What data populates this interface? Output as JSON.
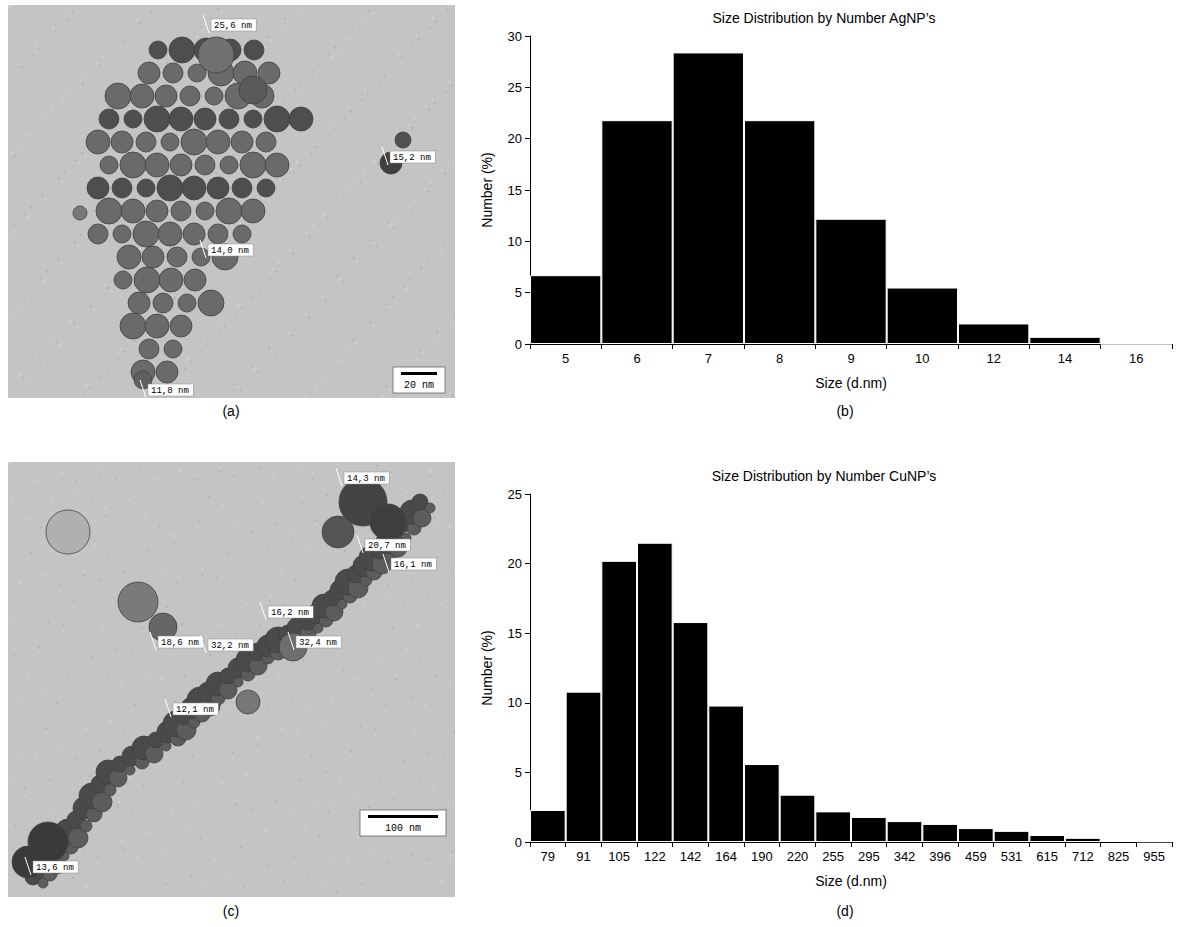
{
  "chart_data": [
    {
      "type": "bar",
      "title": "Size Distribution by Number AgNP’s",
      "x_label": "Size (d.nm)",
      "y_label": "Number (%)",
      "categories": [
        "5",
        "6",
        "7",
        "8",
        "9",
        "10",
        "12",
        "14",
        "16"
      ],
      "values": [
        6.7,
        21.8,
        28.4,
        21.8,
        12.2,
        5.5,
        2.0,
        0.7,
        0
      ],
      "color": "#000000",
      "ylim": [
        0,
        30
      ],
      "yticks": [
        0,
        5,
        10,
        15,
        20,
        25,
        30
      ],
      "grid": false
    },
    {
      "type": "bar",
      "title": "Size Distribution by Number CuNP’s",
      "x_label": "Size (d.nm)",
      "y_label": "Number (%)",
      "categories": [
        "79",
        "91",
        "105",
        "122",
        "142",
        "164",
        "190",
        "220",
        "255",
        "295",
        "342",
        "396",
        "459",
        "531",
        "615",
        "712",
        "825",
        "955"
      ],
      "values": [
        2.3,
        10.8,
        20.2,
        21.5,
        15.8,
        9.8,
        5.6,
        3.4,
        2.2,
        1.8,
        1.5,
        1.3,
        1.0,
        0.8,
        0.5,
        0.3,
        0.1,
        0.05
      ],
      "color": "#000000",
      "ylim": [
        0,
        25
      ],
      "yticks": [
        0,
        5,
        10,
        15,
        20,
        25
      ],
      "grid": false
    }
  ],
  "images": [
    {
      "labels": [
        "25,6 nm",
        "15,2 nm",
        "14,0 nm",
        "11,8 nm"
      ],
      "scale_bar": "20 nm"
    },
    {
      "labels": [
        "14,3 nm",
        "20,7 nm",
        "16,1 nm",
        "16,2 nm",
        "18,6 nm",
        "32,2 nm",
        "32,4 nm",
        "12,1 nm",
        "13,6 nm"
      ],
      "scale_bar": "100 nm"
    }
  ],
  "panel_labels": [
    "(a)",
    "(b)",
    "(c)",
    "(d)"
  ]
}
